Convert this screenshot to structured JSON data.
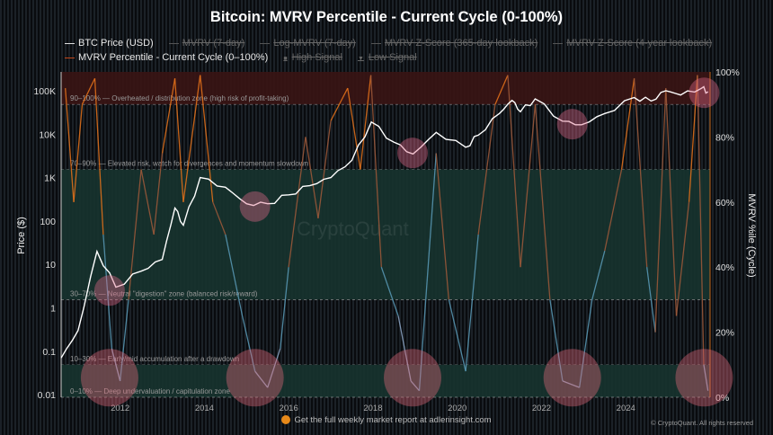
{
  "chart_data": {
    "type": "line",
    "title": "Bitcoin: MVRV Percentile - Current Cycle (0-100%)",
    "legend": {
      "placement": "top",
      "entries": [
        {
          "label": "BTC Price (USD)",
          "active": true,
          "color": "#ffffff"
        },
        {
          "label": "MVRV (7-day)",
          "active": false
        },
        {
          "label": "Log-MVRV (7-day)",
          "active": false
        },
        {
          "label": "MVRV Z-Score (365-day lookback)",
          "active": false
        },
        {
          "label": "MVRV Z-Score (4-year lookback)",
          "active": false
        },
        {
          "label": "MVRV Percentile - Current Cycle (0–100%)",
          "active": true,
          "color": "#e8731a"
        },
        {
          "label": "High Signal",
          "active": false,
          "marker": "square"
        },
        {
          "label": "Low Signal",
          "active": false,
          "marker": "triangle"
        }
      ]
    },
    "ylabel_left": "Price ($)",
    "ylabel_right": "MVRV %ile (Cycle)",
    "y_left_scale": "log",
    "y_left_range": [
      0.01,
      200000
    ],
    "y_left_ticks": [
      "0.01",
      "0.1",
      "1",
      "10",
      "100",
      "1K",
      "10K",
      "100K"
    ],
    "y_right_range": [
      0,
      100
    ],
    "y_right_ticks": [
      "0%",
      "20%",
      "40%",
      "60%",
      "80%",
      "100%"
    ],
    "x_range": [
      2010.6,
      2026.0
    ],
    "x_ticks": [
      "2012",
      "2014",
      "2016",
      "2018",
      "2020",
      "2022",
      "2024"
    ],
    "zones": [
      {
        "range": [
          90,
          100
        ],
        "label": "90–100% — Overheated / distribution zone (high risk of profit-taking)",
        "color": "#3a1414"
      },
      {
        "range": [
          70,
          90
        ],
        "label": "70–90% — Elevated risk, watch for divergences and momentum slowdown",
        "color": "none"
      },
      {
        "range": [
          30,
          70
        ],
        "label": "30–70% — Neutral \"digestion\" zone (balanced risk/reward)",
        "color": "#17332f"
      },
      {
        "range": [
          10,
          30
        ],
        "label": "10–30% — Early/mid accumulation after a drawdown",
        "color": "none"
      },
      {
        "range": [
          0,
          10
        ],
        "label": "0–10% — Deep undervaluation / capitulation zone",
        "color": "#17332f"
      }
    ],
    "series": [
      {
        "name": "BTC Price (USD)",
        "axis": "left",
        "x": [
          2010.6,
          2011.0,
          2011.45,
          2011.9,
          2012.5,
          2013.0,
          2013.3,
          2013.5,
          2013.9,
          2014.5,
          2015.0,
          2015.5,
          2016.0,
          2016.5,
          2017.0,
          2017.5,
          2017.96,
          2018.5,
          2018.95,
          2019.5,
          2020.2,
          2020.5,
          2021.0,
          2021.3,
          2021.5,
          2021.85,
          2022.5,
          2022.95,
          2023.5,
          2024.2,
          2024.6,
          2024.95,
          2025.3,
          2025.8,
          2025.95
        ],
        "y": [
          0.07,
          0.3,
          20,
          3,
          7,
          13,
          200,
          80,
          1000,
          600,
          250,
          250,
          400,
          650,
          1000,
          2500,
          19000,
          6500,
          3500,
          11000,
          5000,
          9500,
          30000,
          60000,
          33000,
          65000,
          20000,
          16500,
          30000,
          70000,
          58000,
          100000,
          80000,
          115000,
          95000
        ]
      },
      {
        "name": "MVRV Percentile - Current Cycle (0–100%)",
        "axis": "right",
        "x": [
          2010.7,
          2010.9,
          2011.1,
          2011.4,
          2011.6,
          2011.8,
          2012.0,
          2012.2,
          2012.5,
          2012.8,
          2013.0,
          2013.3,
          2013.5,
          2013.9,
          2014.2,
          2014.5,
          2014.9,
          2015.2,
          2015.5,
          2015.8,
          2016.0,
          2016.4,
          2016.7,
          2017.0,
          2017.4,
          2017.7,
          2017.95,
          2018.2,
          2018.6,
          2018.9,
          2019.1,
          2019.5,
          2019.8,
          2020.2,
          2020.5,
          2020.9,
          2021.2,
          2021.5,
          2021.85,
          2022.2,
          2022.5,
          2022.9,
          2023.2,
          2023.5,
          2023.9,
          2024.2,
          2024.5,
          2024.7,
          2024.95,
          2025.2,
          2025.5,
          2025.7,
          2025.85,
          2025.95
        ],
        "y": [
          95,
          60,
          90,
          98,
          50,
          15,
          5,
          30,
          70,
          50,
          75,
          98,
          60,
          99,
          60,
          50,
          25,
          8,
          3,
          15,
          40,
          80,
          55,
          85,
          95,
          70,
          99,
          40,
          25,
          5,
          2,
          75,
          30,
          8,
          50,
          90,
          99,
          40,
          90,
          30,
          5,
          3,
          30,
          45,
          70,
          98,
          40,
          20,
          95,
          25,
          60,
          99,
          10,
          2
        ]
      }
    ],
    "signal_markers": [
      {
        "year": 2011.75,
        "price": 2.5,
        "percentile": 6
      },
      {
        "year": 2015.2,
        "price": 215,
        "percentile": 6
      },
      {
        "year": 2018.94,
        "price": 3700,
        "percentile": 6
      },
      {
        "year": 2022.73,
        "price": 17000,
        "percentile": 6
      },
      {
        "year": 2025.86,
        "price": 90000,
        "percentile": 6
      }
    ],
    "watermark": "CryptoQuant"
  },
  "footer": {
    "text": "Get the full weekly market report at adlerinsight.com",
    "copyright": "© CryptoQuant. All rights reserved"
  }
}
